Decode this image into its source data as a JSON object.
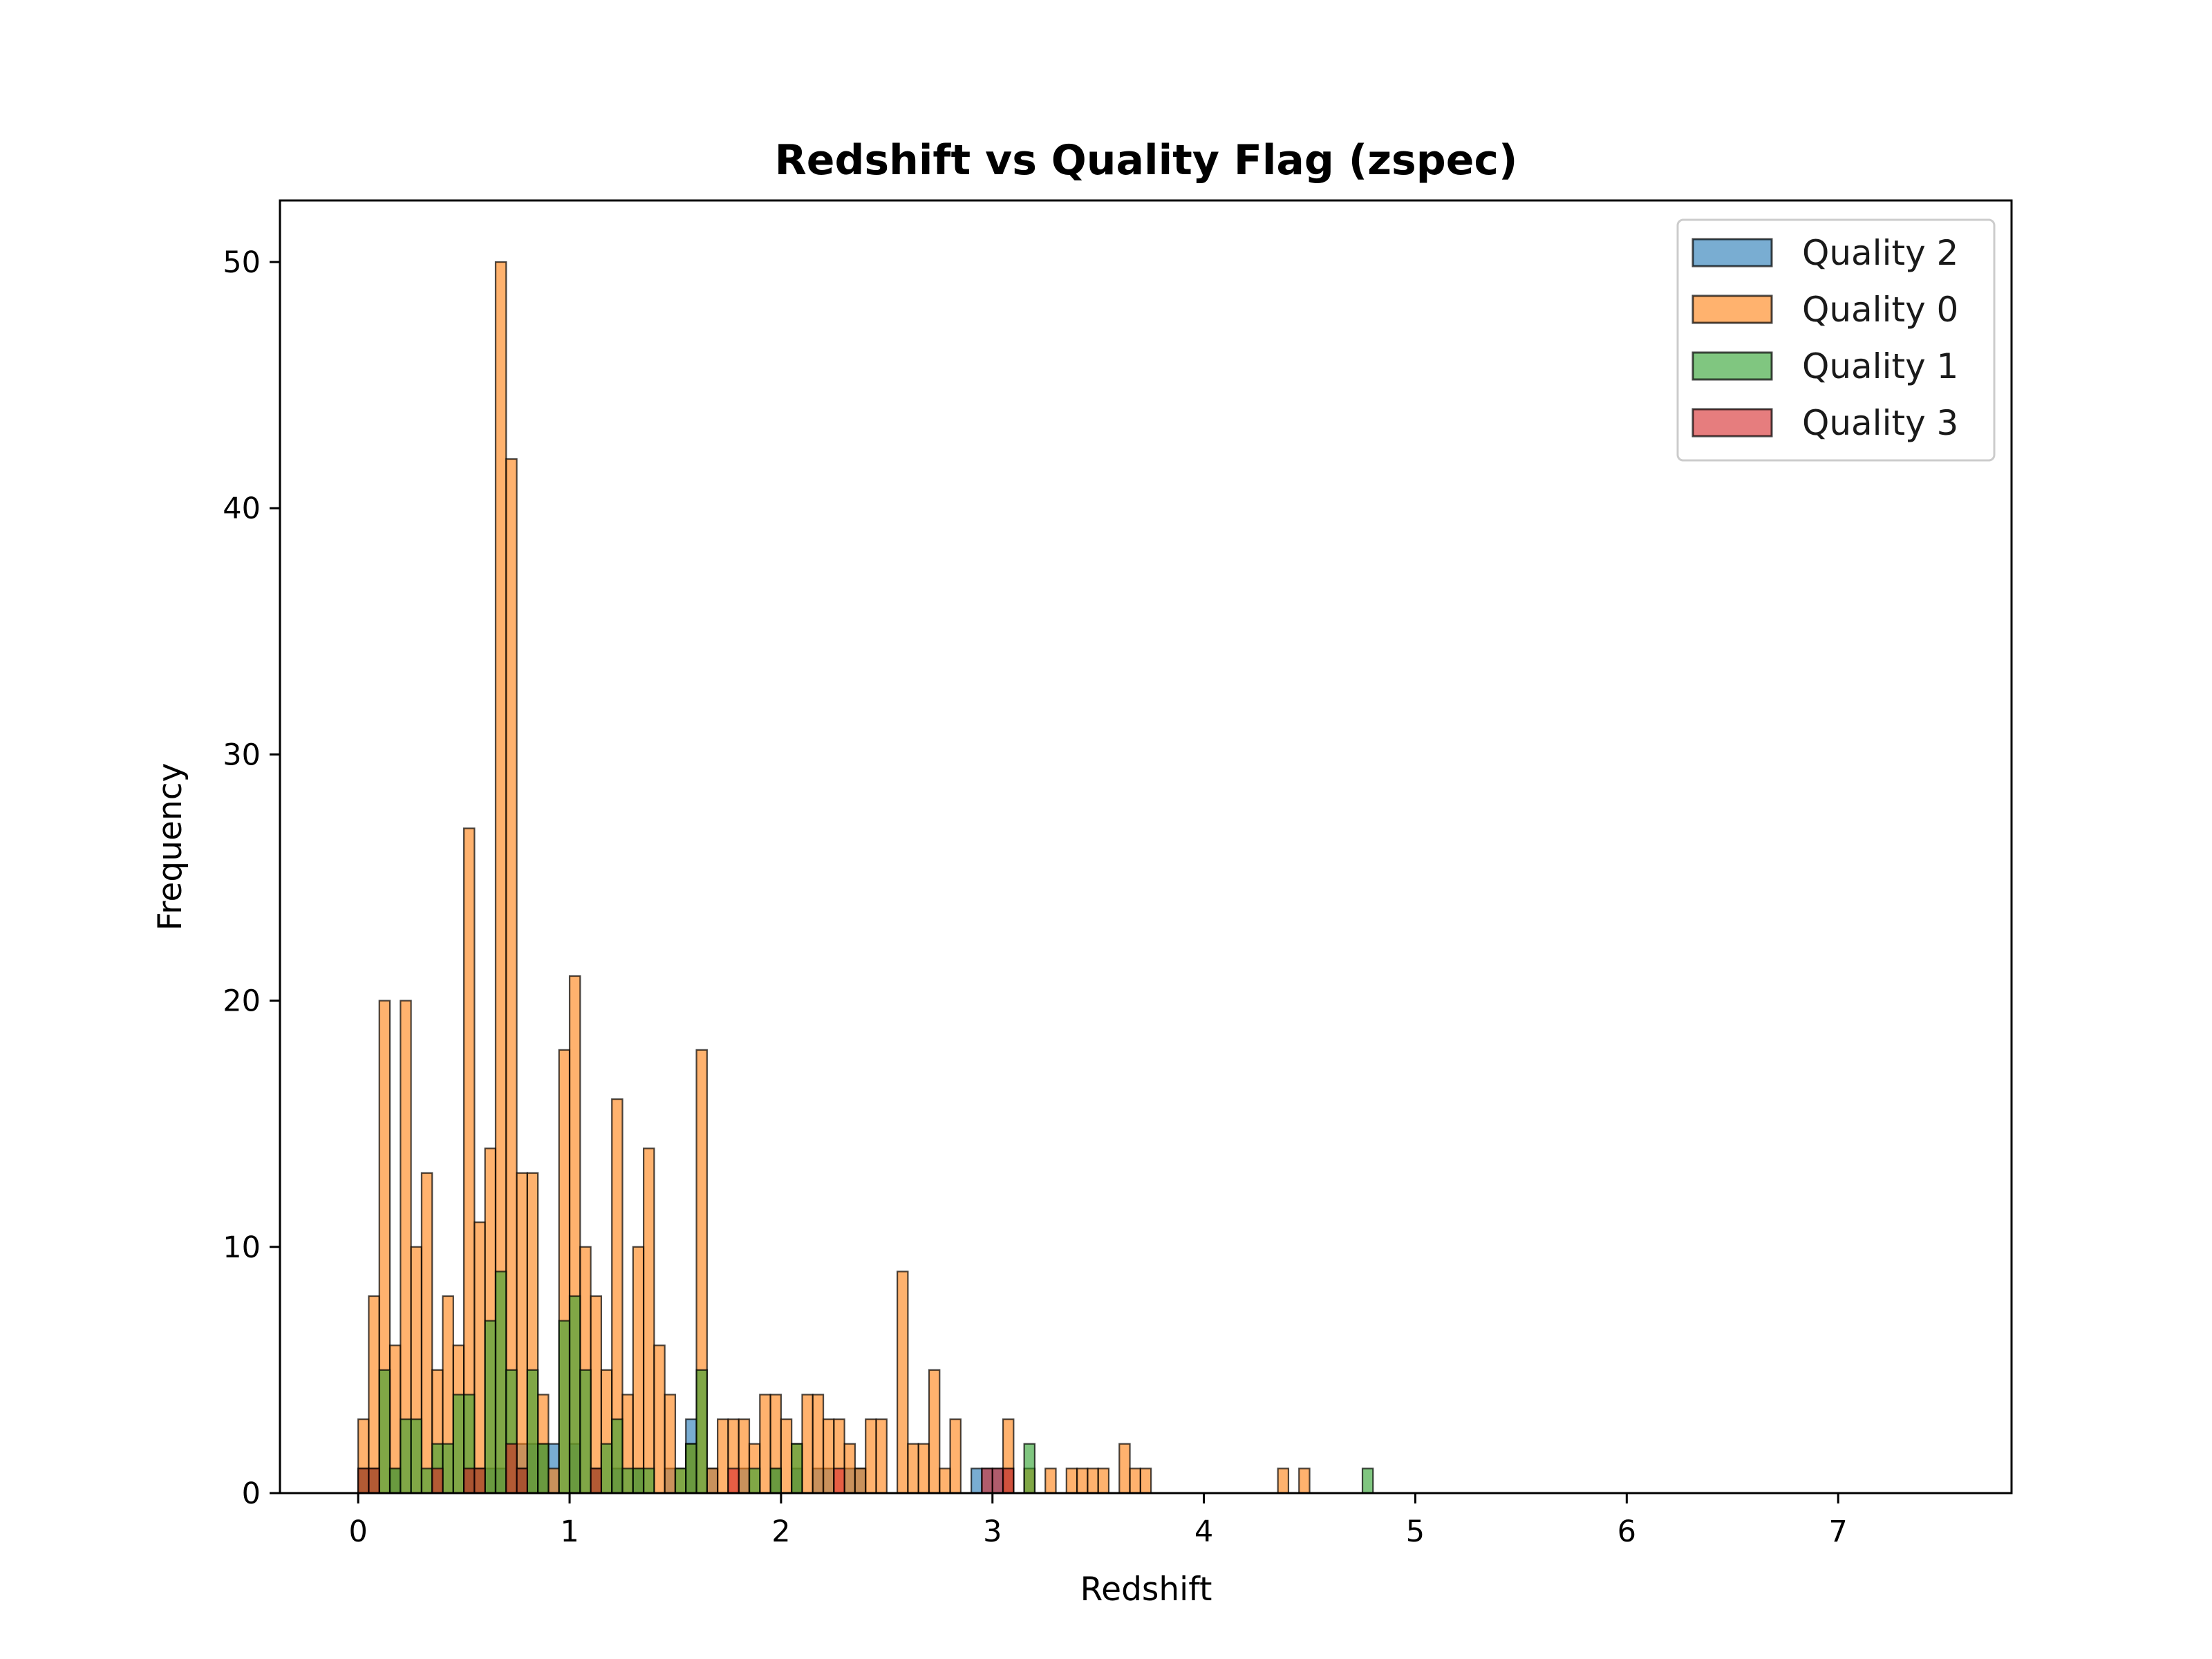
{
  "chart_data": {
    "type": "bar",
    "title": "Redshift vs Quality Flag (zspec)",
    "xlabel": "Redshift",
    "ylabel": "Frequency",
    "xlim": [
      -0.37,
      7.82
    ],
    "ylim": [
      0,
      52.5
    ],
    "xticks": [
      0,
      1,
      2,
      3,
      4,
      5,
      6,
      7
    ],
    "yticks": [
      0,
      10,
      20,
      30,
      40,
      50
    ],
    "bin_start": 0,
    "bin_width": 0.05,
    "bin_count": 149,
    "legend_position": "upper right",
    "grid": false,
    "series": [
      {
        "name": "Quality 2",
        "color": "#1f77b4",
        "points": [
          [
            0.15,
            1
          ],
          [
            0.5,
            1
          ],
          [
            0.6,
            1
          ],
          [
            0.65,
            1
          ],
          [
            0.75,
            2
          ],
          [
            0.8,
            2
          ],
          [
            0.85,
            2
          ],
          [
            0.9,
            2
          ],
          [
            1.0,
            2
          ],
          [
            1.2,
            1
          ],
          [
            1.3,
            1
          ],
          [
            1.45,
            1
          ],
          [
            1.55,
            3
          ],
          [
            1.65,
            1
          ],
          [
            1.8,
            1
          ],
          [
            1.95,
            1
          ],
          [
            2.05,
            1
          ],
          [
            2.15,
            1
          ],
          [
            2.2,
            1
          ],
          [
            2.3,
            1
          ],
          [
            2.35,
            1
          ],
          [
            2.9,
            1
          ],
          [
            2.95,
            1
          ],
          [
            3.0,
            1
          ],
          [
            3.05,
            1
          ]
        ]
      },
      {
        "name": "Quality 0",
        "color": "#ff7f0e",
        "points": [
          [
            0.0,
            3
          ],
          [
            0.05,
            8
          ],
          [
            0.1,
            20
          ],
          [
            0.15,
            6
          ],
          [
            0.2,
            20
          ],
          [
            0.25,
            10
          ],
          [
            0.3,
            13
          ],
          [
            0.35,
            5
          ],
          [
            0.4,
            8
          ],
          [
            0.45,
            6
          ],
          [
            0.5,
            27
          ],
          [
            0.55,
            11
          ],
          [
            0.6,
            14
          ],
          [
            0.65,
            50
          ],
          [
            0.7,
            42
          ],
          [
            0.75,
            13
          ],
          [
            0.8,
            13
          ],
          [
            0.85,
            4
          ],
          [
            0.9,
            1
          ],
          [
            0.95,
            18
          ],
          [
            1.0,
            21
          ],
          [
            1.05,
            10
          ],
          [
            1.1,
            8
          ],
          [
            1.15,
            5
          ],
          [
            1.2,
            16
          ],
          [
            1.25,
            4
          ],
          [
            1.3,
            10
          ],
          [
            1.35,
            14
          ],
          [
            1.4,
            6
          ],
          [
            1.45,
            4
          ],
          [
            1.5,
            1
          ],
          [
            1.55,
            2
          ],
          [
            1.6,
            18
          ],
          [
            1.65,
            1
          ],
          [
            1.7,
            3
          ],
          [
            1.75,
            3
          ],
          [
            1.8,
            3
          ],
          [
            1.85,
            2
          ],
          [
            1.9,
            4
          ],
          [
            1.95,
            4
          ],
          [
            2.0,
            3
          ],
          [
            2.05,
            2
          ],
          [
            2.1,
            4
          ],
          [
            2.15,
            4
          ],
          [
            2.2,
            3
          ],
          [
            2.25,
            3
          ],
          [
            2.3,
            2
          ],
          [
            2.35,
            1
          ],
          [
            2.4,
            3
          ],
          [
            2.45,
            3
          ],
          [
            2.55,
            9
          ],
          [
            2.6,
            2
          ],
          [
            2.65,
            2
          ],
          [
            2.7,
            5
          ],
          [
            2.75,
            1
          ],
          [
            2.8,
            3
          ],
          [
            3.05,
            3
          ],
          [
            3.15,
            1
          ],
          [
            3.25,
            1
          ],
          [
            3.35,
            1
          ],
          [
            3.4,
            1
          ],
          [
            3.45,
            1
          ],
          [
            3.5,
            1
          ],
          [
            3.6,
            2
          ],
          [
            3.65,
            1
          ],
          [
            3.7,
            1
          ],
          [
            4.35,
            1
          ],
          [
            4.45,
            1
          ]
        ]
      },
      {
        "name": "Quality 1",
        "color": "#2ca02c",
        "points": [
          [
            0.0,
            1
          ],
          [
            0.05,
            1
          ],
          [
            0.1,
            5
          ],
          [
            0.15,
            1
          ],
          [
            0.2,
            3
          ],
          [
            0.25,
            3
          ],
          [
            0.3,
            1
          ],
          [
            0.35,
            2
          ],
          [
            0.4,
            2
          ],
          [
            0.45,
            4
          ],
          [
            0.5,
            4
          ],
          [
            0.55,
            1
          ],
          [
            0.6,
            7
          ],
          [
            0.65,
            9
          ],
          [
            0.7,
            5
          ],
          [
            0.75,
            1
          ],
          [
            0.8,
            5
          ],
          [
            0.85,
            2
          ],
          [
            0.95,
            7
          ],
          [
            1.0,
            8
          ],
          [
            1.05,
            5
          ],
          [
            1.1,
            1
          ],
          [
            1.15,
            2
          ],
          [
            1.2,
            3
          ],
          [
            1.25,
            1
          ],
          [
            1.3,
            1
          ],
          [
            1.35,
            1
          ],
          [
            1.5,
            1
          ],
          [
            1.55,
            2
          ],
          [
            1.6,
            5
          ],
          [
            1.85,
            1
          ],
          [
            1.95,
            1
          ],
          [
            2.05,
            2
          ],
          [
            3.15,
            2
          ],
          [
            4.75,
            1
          ]
        ]
      },
      {
        "name": "Quality 3",
        "color": "#d62728",
        "points": [
          [
            0.0,
            1
          ],
          [
            0.05,
            1
          ],
          [
            0.35,
            1
          ],
          [
            0.5,
            1
          ],
          [
            0.55,
            1
          ],
          [
            0.7,
            2
          ],
          [
            0.75,
            1
          ],
          [
            1.1,
            1
          ],
          [
            1.75,
            1
          ],
          [
            2.25,
            1
          ],
          [
            2.95,
            1
          ],
          [
            3.0,
            1
          ],
          [
            3.05,
            1
          ]
        ]
      }
    ]
  }
}
